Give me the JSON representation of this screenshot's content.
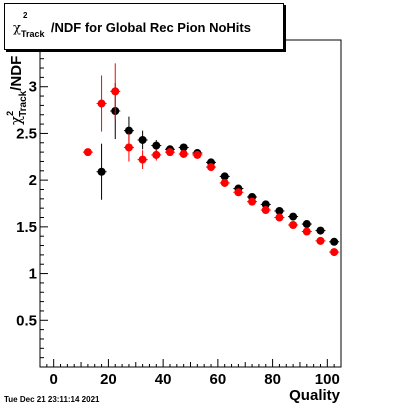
{
  "chart_data": {
    "type": "scatter",
    "title": "/NDF for Global Rec Pion NoHits",
    "title_symbol": "χ",
    "title_superscript": "2",
    "title_subscript": "Track",
    "xlabel": "Quality",
    "ylabel_symbol": "χ",
    "ylabel_superscript": "2",
    "ylabel_subscript": "Track",
    "ylabel_suffix": "/NDF",
    "xlim": [
      -5,
      105
    ],
    "ylim": [
      0,
      3.5
    ],
    "xticks": [
      0,
      20,
      40,
      60,
      80,
      100
    ],
    "yticks": [
      0.5,
      1,
      1.5,
      2,
      2.5,
      3
    ],
    "xtick_labels": [
      "0",
      "20",
      "40",
      "60",
      "80",
      "100"
    ],
    "ytick_labels": [
      "0.5",
      "1",
      "1.5",
      "2",
      "2.5",
      "3"
    ],
    "grid": false,
    "legend": "none",
    "series": [
      {
        "color": "#000000",
        "x": [
          17.5,
          22.5,
          27.5,
          32.5,
          37.5,
          42.5,
          47.5,
          52.5,
          57.5,
          62.5,
          67.5,
          72.5,
          77.5,
          82.5,
          87.5,
          92.5,
          97.5,
          102.5
        ],
        "y": [
          2.09,
          2.74,
          2.53,
          2.43,
          2.37,
          2.33,
          2.35,
          2.29,
          2.19,
          2.04,
          1.91,
          1.82,
          1.74,
          1.67,
          1.61,
          1.53,
          1.46,
          1.34
        ],
        "err": [
          0.3,
          0.3,
          0.15,
          0.1,
          0.06,
          0.04,
          0.03,
          0.03,
          0.02,
          0.02,
          0.02,
          0.02,
          0.02,
          0.02,
          0.02,
          0.02,
          0.02,
          0.02
        ]
      },
      {
        "color": "#ff0000",
        "x": [
          12.5,
          17.5,
          22.5,
          27.5,
          32.5,
          37.5,
          42.5,
          47.5,
          52.5,
          57.5,
          62.5,
          67.5,
          72.5,
          77.5,
          82.5,
          87.5,
          92.5,
          97.5,
          102.5
        ],
        "y": [
          2.3,
          2.82,
          2.95,
          2.35,
          2.22,
          2.27,
          2.3,
          2.28,
          2.27,
          2.14,
          1.97,
          1.87,
          1.77,
          1.68,
          1.6,
          1.52,
          1.45,
          1.35,
          1.23
        ],
        "err": [
          0.02,
          0.3,
          0.3,
          0.15,
          0.1,
          0.06,
          0.04,
          0.03,
          0.03,
          0.02,
          0.02,
          0.02,
          0.02,
          0.02,
          0.02,
          0.02,
          0.02,
          0.02,
          0.02
        ]
      }
    ]
  },
  "footer": {
    "timestamp": "Tue Dec 21 23:11:14 2021"
  }
}
